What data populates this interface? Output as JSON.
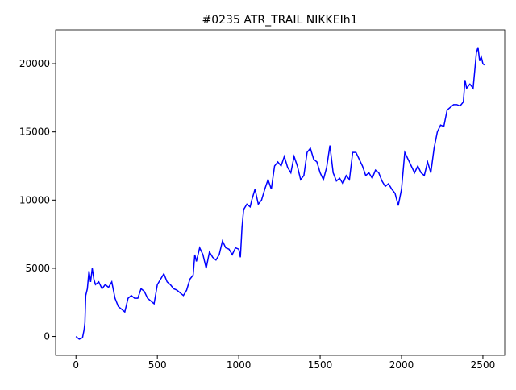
{
  "chart_data": {
    "type": "line",
    "title": "#0235 ATR_TRAIL NIKKEIh1",
    "x": [
      0,
      20,
      40,
      50,
      55,
      60,
      70,
      80,
      90,
      100,
      110,
      120,
      140,
      160,
      180,
      200,
      220,
      240,
      260,
      280,
      300,
      320,
      340,
      360,
      380,
      400,
      420,
      440,
      460,
      480,
      500,
      520,
      540,
      560,
      580,
      600,
      620,
      640,
      660,
      680,
      700,
      720,
      730,
      740,
      760,
      780,
      800,
      820,
      840,
      860,
      880,
      900,
      920,
      940,
      960,
      980,
      1000,
      1010,
      1020,
      1030,
      1050,
      1070,
      1080,
      1100,
      1120,
      1140,
      1160,
      1180,
      1200,
      1220,
      1240,
      1260,
      1280,
      1300,
      1320,
      1340,
      1360,
      1380,
      1400,
      1420,
      1440,
      1460,
      1480,
      1500,
      1520,
      1540,
      1560,
      1580,
      1600,
      1620,
      1640,
      1660,
      1680,
      1700,
      1720,
      1740,
      1760,
      1780,
      1800,
      1820,
      1840,
      1860,
      1880,
      1900,
      1920,
      1940,
      1960,
      1980,
      2000,
      2020,
      2040,
      2060,
      2080,
      2100,
      2120,
      2140,
      2160,
      2180,
      2200,
      2220,
      2240,
      2260,
      2280,
      2300,
      2320,
      2340,
      2360,
      2380,
      2390,
      2400,
      2420,
      2440,
      2460,
      2470,
      2480,
      2490,
      2500,
      2509
    ],
    "series": [
      {
        "color": "#0000ff",
        "values": [
          0,
          -200,
          -100,
          500,
          1000,
          3000,
          3500,
          4800,
          4000,
          5000,
          4200,
          3800,
          4000,
          3500,
          3800,
          3600,
          4000,
          2800,
          2200,
          2000,
          1800,
          2800,
          3000,
          2800,
          2800,
          3500,
          3300,
          2800,
          2600,
          2400,
          3800,
          4200,
          4600,
          4000,
          3800,
          3500,
          3400,
          3200,
          3000,
          3400,
          4200,
          4500,
          6000,
          5500,
          6500,
          6000,
          5000,
          6200,
          5800,
          5600,
          6000,
          7000,
          6500,
          6400,
          6000,
          6500,
          6400,
          5800,
          8000,
          9300,
          9700,
          9500,
          10000,
          10800,
          9700,
          10000,
          10800,
          11500,
          10800,
          12500,
          12800,
          12500,
          13200,
          12400,
          12000,
          13200,
          12500,
          11500,
          11800,
          13500,
          13800,
          13000,
          12800,
          12000,
          11500,
          12400,
          14000,
          12000,
          11400,
          11600,
          11200,
          11800,
          11500,
          13500,
          13500,
          13000,
          12500,
          11800,
          12000,
          11600,
          12200,
          12000,
          11400,
          11000,
          11200,
          10800,
          10500,
          9600,
          10800,
          13500,
          13000,
          12500,
          12000,
          12500,
          12000,
          11800,
          12800,
          12000,
          13800,
          15000,
          15500,
          15400,
          16600,
          16800,
          17000,
          17000,
          16900,
          17200,
          18800,
          18200,
          18500,
          18200,
          20800,
          21200,
          20200,
          20500,
          20000,
          19900
        ]
      }
    ],
    "xlim": [
      -125,
      2634
    ],
    "ylim": [
      -1385,
      22485
    ],
    "xticks": [
      0,
      500,
      1000,
      1500,
      2000,
      2500
    ],
    "yticks": [
      0,
      5000,
      10000,
      15000,
      20000
    ]
  }
}
